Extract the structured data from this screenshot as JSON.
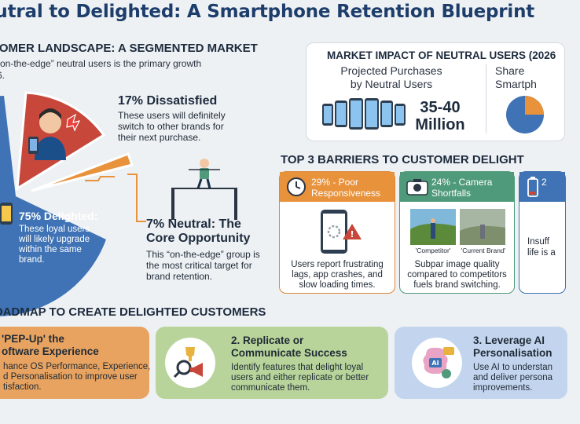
{
  "title": "eutral to Delighted: A Smartphone Retention Blueprint",
  "segment": {
    "heading": "TOMER LANDSCAPE: A SEGMENTED MARKET",
    "sub": "“on-the-edge” neutral users is the primary growth",
    "sub2": "6.",
    "dissatisfied": {
      "title": "17% Dissatisfied",
      "text": "These users will definitely switch to other brands for their next purchase.",
      "share": 17
    },
    "neutral": {
      "title1": "7% Neutral: The",
      "title2": "Core Opportunity",
      "text": "This “on-the-edge” group is the most critical target for brand retention.",
      "share": 7
    },
    "delighted": {
      "title": "75% Delighted:",
      "text": "These loyal users will likely upgrade within the same brand.",
      "share": 75
    }
  },
  "market_impact": {
    "title": "MARKET IMPACT OF NEUTRAL USERS (2026",
    "label1": "Projected Purchases",
    "label2": "by Neutral Users",
    "value1": "35-40",
    "value2": "Million",
    "share_label1": "Share",
    "share_label2": "Smartph"
  },
  "barriers": {
    "heading": "TOP 3 BARRIERS TO CUSTOMER DELIGHT",
    "items": [
      {
        "title1": "29% - Poor",
        "title2": "Responsiveness",
        "text": "Users report frustrating lags, app crashes, and slow loading times."
      },
      {
        "title1": "24% - Camera",
        "title2": "Shortfalls",
        "text": "Subpar image quality compared to competitors fuels brand switching.",
        "cap1": "'Competitor'",
        "cap2": "'Current Brand'"
      },
      {
        "title1": "2",
        "text1": "Insuff",
        "text2": "life is a"
      }
    ]
  },
  "roadmap": {
    "heading": "OADMAP TO CREATE DELIGHTED CUSTOMERS",
    "items": [
      {
        "title1": "'PEP-Up' the",
        "title2": "oftware Experience",
        "text1": "hance OS Performance, Experience,",
        "text2": "d Personalisation to improve user",
        "text3": "tisfaction."
      },
      {
        "title1": "2. Replicate or",
        "title2": "Communicate Success",
        "text1": "Identify features that delight loyal",
        "text2": "users and either replicate or better",
        "text3": "communicate them."
      },
      {
        "title1": "3. Leverage AI",
        "title2": "Personalisation",
        "text1": "Use AI to understan",
        "text2": "and deliver persona",
        "text3": "improvements."
      }
    ]
  },
  "colors": {
    "navy": "#1d3d6b",
    "red": "#c8473b",
    "orange": "#e8923c",
    "blue": "#3f73b5",
    "green": "#4f9a7a"
  }
}
